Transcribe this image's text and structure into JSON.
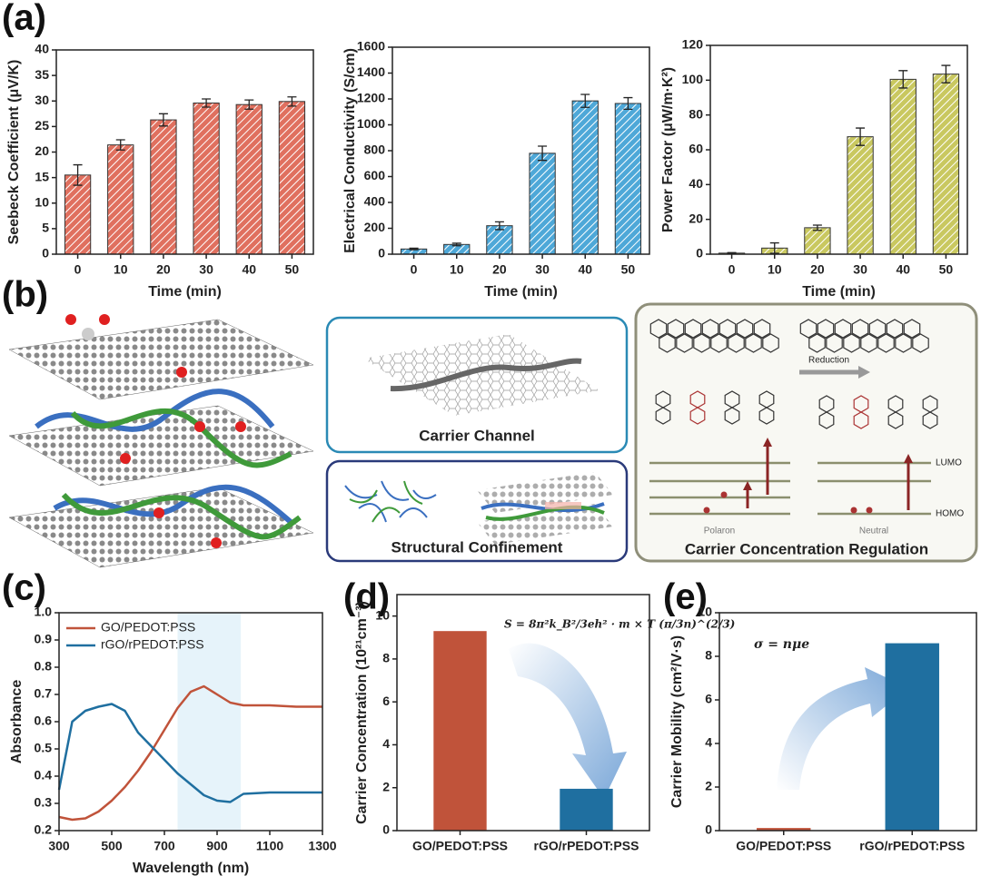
{
  "panel_labels": [
    "(a)",
    "(b)",
    "(c)",
    "(d)",
    "(e)"
  ],
  "diagram": {
    "channel": "Carrier Channel",
    "confinement": "Structural Confinement",
    "regulation": "Carrier Concentration Regulation",
    "reduction": "Reduction",
    "lumo": "LUMO",
    "homo": "HOMO",
    "polaron": "Polaron",
    "neutral": "Neutral"
  },
  "chart_data": [
    {
      "type": "bar",
      "xlabel": "Time (min)",
      "ylabel": "Seebeck Coefficient (μV/K)",
      "categories": [
        "0",
        "10",
        "20",
        "30",
        "40",
        "50"
      ],
      "values": [
        15.5,
        21.4,
        26.3,
        29.6,
        29.3,
        29.9
      ],
      "errors": [
        2.0,
        1.0,
        1.2,
        0.8,
        0.9,
        0.9
      ],
      "color": "#e0705f",
      "hatch": true,
      "ylim": [
        0,
        40
      ],
      "yticks": [
        0,
        5,
        10,
        15,
        20,
        25,
        30,
        35,
        40
      ]
    },
    {
      "type": "bar",
      "xlabel": "Time (min)",
      "ylabel": "Electrical Conductivity (S/cm)",
      "categories": [
        "0",
        "10",
        "20",
        "30",
        "40",
        "50"
      ],
      "values": [
        40,
        75,
        220,
        780,
        1185,
        1165
      ],
      "errors": [
        6,
        10,
        30,
        55,
        50,
        45
      ],
      "color": "#4ea8d8",
      "hatch": true,
      "ylim": [
        0,
        1600
      ],
      "yticks": [
        0,
        200,
        400,
        600,
        800,
        1000,
        1200,
        1400,
        1600
      ]
    },
    {
      "type": "bar",
      "xlabel": "Time (min)",
      "ylabel": "Power Factor (μW/m·K²)",
      "categories": [
        "0",
        "10",
        "20",
        "30",
        "40",
        "50"
      ],
      "values": [
        0.6,
        3.5,
        15.2,
        67.5,
        100.5,
        103.5
      ],
      "errors": [
        0.3,
        3,
        1.5,
        5,
        5,
        5
      ],
      "color": "#c9c860",
      "hatch": true,
      "ylim": [
        0,
        120
      ],
      "yticks": [
        0,
        20,
        40,
        60,
        80,
        100,
        120
      ]
    },
    {
      "type": "line",
      "xlabel": "Wavelength (nm)",
      "ylabel": "Absorbance",
      "legend": "top-left",
      "x": [
        300,
        350,
        400,
        450,
        500,
        550,
        600,
        650,
        700,
        750,
        800,
        850,
        900,
        950,
        1000,
        1100,
        1200,
        1300
      ],
      "series": [
        {
          "name": "GO/PEDOT:PSS",
          "color": "#c0533a",
          "values": [
            0.25,
            0.24,
            0.245,
            0.27,
            0.31,
            0.36,
            0.42,
            0.49,
            0.57,
            0.65,
            0.71,
            0.73,
            0.7,
            0.67,
            0.66,
            0.66,
            0.655,
            0.655
          ]
        },
        {
          "name": "rGO/rPEDOT:PSS",
          "color": "#1f6fa0",
          "values": [
            0.35,
            0.6,
            0.64,
            0.655,
            0.665,
            0.64,
            0.56,
            0.51,
            0.46,
            0.41,
            0.37,
            0.33,
            0.31,
            0.305,
            0.335,
            0.34,
            0.34,
            0.34
          ]
        }
      ],
      "highlight_range": [
        750,
        990
      ],
      "xlim": [
        300,
        1300
      ],
      "xticks": [
        300,
        500,
        700,
        900,
        1100,
        1300
      ],
      "ylim": [
        0.2,
        1.0
      ],
      "yticks": [
        0.2,
        0.3,
        0.4,
        0.5,
        0.6,
        0.7,
        0.8,
        0.9,
        {
          "value": 1.0,
          "label": "1.0"
        }
      ]
    },
    {
      "type": "bar",
      "ylabel": "Carrier Concentration (10²¹cm⁻³)",
      "annotation": "S = 8π²k_B²/3eh² · m × T (π/3n)^(2/3)",
      "categories": [
        "GO/PEDOT:PSS",
        "rGO/rPEDOT:PSS"
      ],
      "values": [
        9.3,
        1.95
      ],
      "colors": [
        "#c0533a",
        "#1f6fa0"
      ],
      "ylim": [
        0,
        11
      ],
      "yticks": [
        0,
        2,
        4,
        6,
        8,
        10
      ]
    },
    {
      "type": "bar",
      "ylabel": "Carrier Mobility (cm²/V·s)",
      "annotation": "σ = nμe",
      "categories": [
        "GO/PEDOT:PSS",
        "rGO/rPEDOT:PSS"
      ],
      "values": [
        0.12,
        8.6
      ],
      "colors": [
        "#c0533a",
        "#1f6fa0"
      ],
      "ylim": [
        0,
        10
      ],
      "yticks": [
        0,
        2,
        4,
        6,
        8,
        10
      ]
    }
  ]
}
